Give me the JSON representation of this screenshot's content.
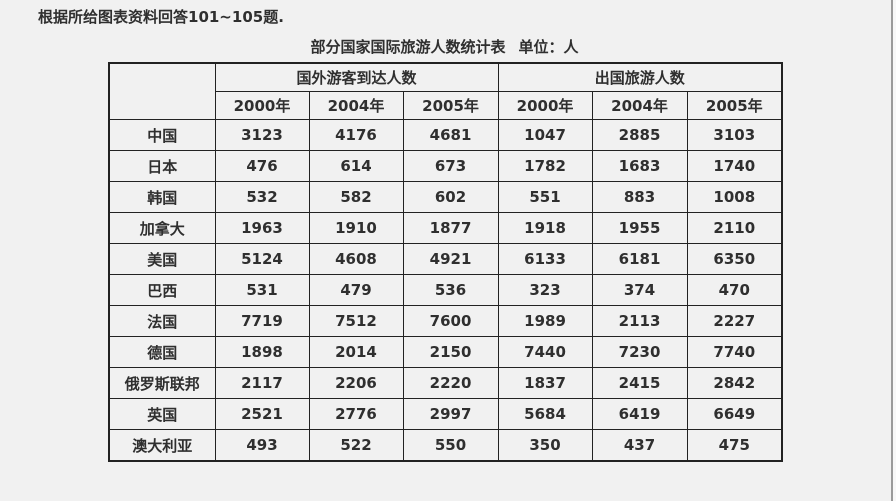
{
  "page": {
    "instruction": "根据所给图表资料回答101~105题.",
    "title": "部分国家国际旅游人数统计表",
    "unit": "单位：人"
  },
  "table": {
    "corner_label": "",
    "groups": [
      {
        "label": "国外游客到达人数",
        "years": [
          "2000年",
          "2004年",
          "2005年"
        ]
      },
      {
        "label": "出国旅游人数",
        "years": [
          "2000年",
          "2004年",
          "2005年"
        ]
      }
    ],
    "rows": [
      {
        "country": "中国",
        "arrivals": [
          3123,
          4176,
          4681
        ],
        "outbound": [
          1047,
          2885,
          3103
        ]
      },
      {
        "country": "日本",
        "arrivals": [
          476,
          614,
          673
        ],
        "outbound": [
          1782,
          1683,
          1740
        ]
      },
      {
        "country": "韩国",
        "arrivals": [
          532,
          582,
          602
        ],
        "outbound": [
          551,
          883,
          1008
        ]
      },
      {
        "country": "加拿大",
        "arrivals": [
          1963,
          1910,
          1877
        ],
        "outbound": [
          1918,
          1955,
          2110
        ]
      },
      {
        "country": "美国",
        "arrivals": [
          5124,
          4608,
          4921
        ],
        "outbound": [
          6133,
          6181,
          6350
        ]
      },
      {
        "country": "巴西",
        "arrivals": [
          531,
          479,
          536
        ],
        "outbound": [
          323,
          374,
          470
        ]
      },
      {
        "country": "法国",
        "arrivals": [
          7719,
          7512,
          7600
        ],
        "outbound": [
          1989,
          2113,
          2227
        ]
      },
      {
        "country": "德国",
        "arrivals": [
          1898,
          2014,
          2150
        ],
        "outbound": [
          7440,
          7230,
          7740
        ]
      },
      {
        "country": "俄罗斯联邦",
        "arrivals": [
          2117,
          2206,
          2220
        ],
        "outbound": [
          1837,
          2415,
          2842
        ]
      },
      {
        "country": "英国",
        "arrivals": [
          2521,
          2776,
          2997
        ],
        "outbound": [
          5684,
          6419,
          6649
        ]
      },
      {
        "country": "澳大利亚",
        "arrivals": [
          493,
          522,
          550
        ],
        "outbound": [
          350,
          437,
          475
        ]
      }
    ]
  },
  "colors": {
    "background": "#f1f1f1",
    "text": "#2f2f2f",
    "border": "#222222",
    "edge_line": "#9b9b9b"
  }
}
